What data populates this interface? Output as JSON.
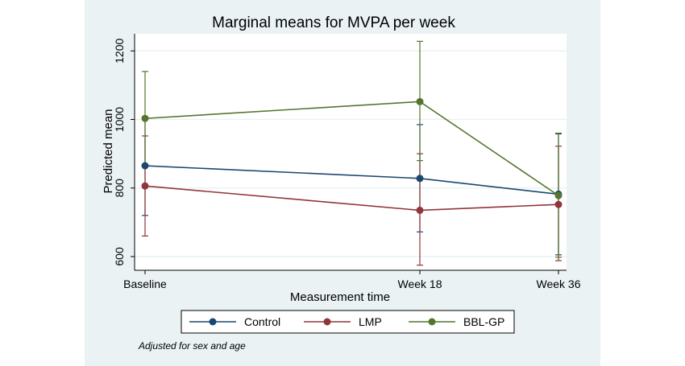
{
  "chart_data": {
    "type": "line",
    "title": "Marginal means for MVPA per week",
    "xlabel": "Measurement time",
    "ylabel": "Predicted mean",
    "categories": [
      "Baseline",
      "Week 18",
      "Week 36"
    ],
    "yticks": [
      "600",
      "800",
      "1000",
      "1200"
    ],
    "ylim": [
      560,
      1250
    ],
    "grid": true,
    "legend_position": "bottom",
    "series": [
      {
        "name": "Control",
        "color": "#1a476f",
        "values": [
          865,
          828,
          782
        ],
        "ci_low": [
          720,
          672,
          605
        ],
        "ci_high": [
          1008,
          985,
          958
        ]
      },
      {
        "name": "LMP",
        "color": "#90353b",
        "values": [
          806,
          735,
          752
        ],
        "ci_low": [
          660,
          575,
          588
        ],
        "ci_high": [
          952,
          900,
          922
        ]
      },
      {
        "name": "BBL-GP",
        "color": "#55752f",
        "values": [
          1003,
          1052,
          778
        ],
        "ci_low": [
          868,
          880,
          598
        ],
        "ci_high": [
          1140,
          1228,
          960
        ]
      }
    ],
    "note": "Adjusted for sex and age"
  }
}
